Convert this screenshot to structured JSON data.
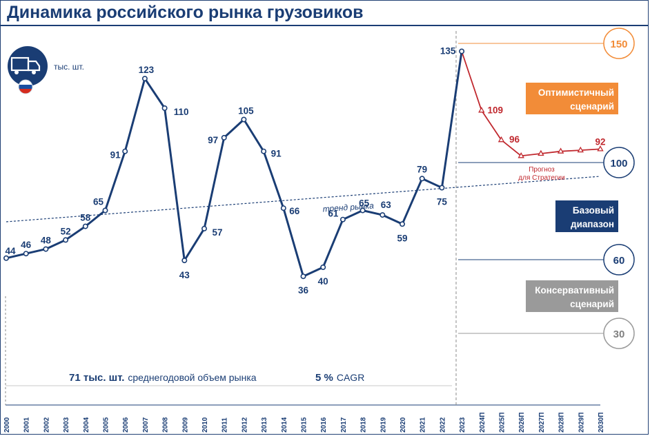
{
  "title": "Динамика российского рынка грузовиков",
  "unit": "тыс. шт.",
  "icons": {
    "truck": "truck-icon",
    "flag": "russia-flag-icon"
  },
  "colors": {
    "navy": "#1a3d74",
    "red": "#c0282e",
    "orange": "#f28c38",
    "gray": "#9a9a9a"
  },
  "trend_label": "тренд рынка",
  "forecast_note_line1": "Прогноз",
  "forecast_note_line2": "для Стратегии",
  "footer": {
    "avg_value": "71 тыс. шт.",
    "avg_text": "среднегодовой объем рынка",
    "cagr_value": "5 %",
    "cagr_text": "CAGR"
  },
  "scenarios": {
    "optimistic_line1": "Оптимистичный",
    "optimistic_line2": "сценарий",
    "base_line1": "Базовый",
    "base_line2": "диапазон",
    "conservative_line1": "Консервативный",
    "conservative_line2": "сценарий"
  },
  "chart_data": {
    "type": "line",
    "title": "Динамика российского рынка грузовиков",
    "ylabel": "тыс. шт.",
    "categories": [
      "2000",
      "2001",
      "2002",
      "2003",
      "2004",
      "2005",
      "2006",
      "2007",
      "2008",
      "2009",
      "2010",
      "2011",
      "2012",
      "2013",
      "2014",
      "2015",
      "2016",
      "2017",
      "2018",
      "2019",
      "2020",
      "2021",
      "2022",
      "2023",
      "2024П",
      "2025П",
      "2026П",
      "2027П",
      "2028П",
      "2029П",
      "2030П"
    ],
    "series": [
      {
        "values": [
          44,
          46,
          48,
          52,
          58,
          65,
          91,
          123,
          110,
          43,
          57,
          97,
          105,
          91,
          66,
          36,
          40,
          61,
          65,
          63,
          59,
          79,
          75,
          135,
          null,
          null,
          null,
          null,
          null,
          null,
          null
        ]
      },
      {
        "values": [
          null,
          null,
          null,
          null,
          null,
          null,
          null,
          null,
          null,
          null,
          null,
          null,
          null,
          null,
          null,
          null,
          null,
          null,
          null,
          null,
          null,
          null,
          null,
          135,
          109,
          96,
          89,
          90,
          91,
          91.5,
          92
        ]
      }
    ],
    "data_labels": {
      "0": "44",
      "1": "46",
      "2": "48",
      "3": "52",
      "4": "58",
      "5": "65",
      "6": "91",
      "7": "123",
      "8": "110",
      "9": "43",
      "10": "57",
      "11": "97",
      "12": "105",
      "13": "91",
      "14": "66",
      "15": "36",
      "16": "40",
      "17": "61",
      "18": "65",
      "19": "63",
      "20": "59",
      "21": "79",
      "22": "75",
      "23": "135",
      "24": "109",
      "25": "96",
      "30": "92"
    },
    "trend": {
      "start": 60,
      "end": 80
    },
    "reference_levels": [
      "150",
      "100",
      "60",
      "30"
    ],
    "grid": false
  }
}
